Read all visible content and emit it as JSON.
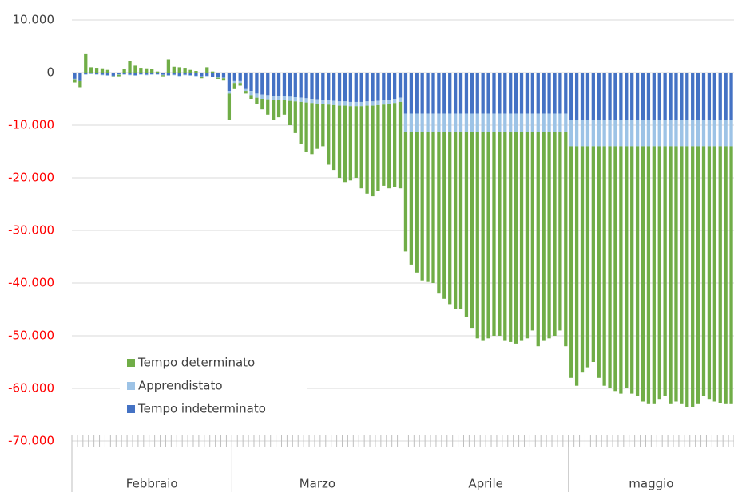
{
  "chart_data": {
    "type": "stacked_bar",
    "categories": [
      null,
      null,
      null,
      null,
      null,
      null,
      null,
      null,
      null,
      null,
      null,
      null,
      null,
      null,
      null,
      null,
      null,
      null,
      null,
      null,
      null,
      null,
      null,
      null,
      null,
      null,
      null,
      null,
      null,
      null,
      null,
      null,
      null,
      null,
      null,
      null,
      null,
      null,
      null,
      null,
      null,
      null,
      null,
      null,
      null,
      null,
      null,
      null,
      null,
      null,
      null,
      null,
      null,
      null,
      null,
      null,
      null,
      null,
      null,
      null,
      null,
      null,
      null,
      null,
      null,
      null,
      null,
      null,
      null,
      null,
      null,
      null,
      null,
      null,
      null,
      null,
      null,
      null,
      null,
      null,
      null,
      null,
      null,
      null,
      null,
      null,
      null,
      null,
      null,
      null,
      null,
      null,
      null,
      null,
      null,
      null,
      null,
      null,
      null,
      null,
      null,
      null,
      null,
      null,
      null,
      null,
      null,
      null,
      null,
      null,
      null,
      null,
      null,
      null,
      null,
      null,
      null,
      null,
      null,
      null
    ],
    "groups": [
      {
        "label": "Febbraio",
        "count": 29
      },
      {
        "label": "Marzo",
        "count": 31
      },
      {
        "label": "Aprile",
        "count": 30
      },
      {
        "label": "maggio",
        "count": 30
      }
    ],
    "series": [
      {
        "name": "Tempo indeterminato",
        "color": "#4472c4",
        "values": [
          -1200,
          -1500,
          -300,
          -200,
          -300,
          -400,
          -500,
          -600,
          -300,
          -300,
          -400,
          -500,
          -300,
          -400,
          -300,
          -300,
          -400,
          -500,
          -400,
          -600,
          -400,
          -500,
          -600,
          -700,
          -600,
          -800,
          -900,
          -1000,
          -3500,
          -1500,
          -1500,
          -3000,
          -3500,
          -4000,
          -4200,
          -4300,
          -4400,
          -4500,
          -4500,
          -4600,
          -4700,
          -4800,
          -4900,
          -5000,
          -5100,
          -5200,
          -5300,
          -5400,
          -5500,
          -5500,
          -5600,
          -5600,
          -5600,
          -5500,
          -5500,
          -5400,
          -5300,
          -5200,
          -5000,
          -4800,
          -7800,
          -7800,
          -7800,
          -7800,
          -7800,
          -7800,
          -7800,
          -7800,
          -7800,
          -7800,
          -7800,
          -7800,
          -7800,
          -7800,
          -7800,
          -7800,
          -7800,
          -7800,
          -7800,
          -7800,
          -7800,
          -7800,
          -7800,
          -7800,
          -7800,
          -7800,
          -7800,
          -7800,
          -7800,
          -7800,
          -9000,
          -9000,
          -9000,
          -9000,
          -9000,
          -9000,
          -9000,
          -9000,
          -9000,
          -9000,
          -9000,
          -9000,
          -9000,
          -9000,
          -9000,
          -9000,
          -9000,
          -9000,
          -9000,
          -9000,
          -9000,
          -9000,
          -9000,
          -9000,
          -9000,
          -9000,
          -9000,
          -9000,
          -9000,
          -9000
        ]
      },
      {
        "name": "Apprendistato",
        "color": "#9dc3e6",
        "values": [
          -100,
          -100,
          -100,
          -100,
          -100,
          -100,
          -100,
          -100,
          -100,
          -100,
          -100,
          -100,
          -100,
          -100,
          -100,
          -100,
          -100,
          -100,
          -100,
          -100,
          -100,
          -100,
          -100,
          -100,
          -100,
          -100,
          -100,
          -100,
          -500,
          -500,
          -500,
          -500,
          -800,
          -800,
          -800,
          -800,
          -800,
          -800,
          -800,
          -800,
          -800,
          -800,
          -800,
          -800,
          -800,
          -800,
          -800,
          -800,
          -800,
          -800,
          -800,
          -800,
          -800,
          -800,
          -800,
          -800,
          -800,
          -800,
          -800,
          -800,
          -3500,
          -3500,
          -3500,
          -3500,
          -3500,
          -3500,
          -3500,
          -3500,
          -3500,
          -3500,
          -3500,
          -3500,
          -3500,
          -3500,
          -3500,
          -3500,
          -3500,
          -3500,
          -3500,
          -3500,
          -3500,
          -3500,
          -3500,
          -3500,
          -3500,
          -3500,
          -3500,
          -3500,
          -3500,
          -3500,
          -5000,
          -5000,
          -5000,
          -5000,
          -5000,
          -5000,
          -5000,
          -5000,
          -5000,
          -5000,
          -5000,
          -5000,
          -5000,
          -5000,
          -5000,
          -5000,
          -5000,
          -5000,
          -5000,
          -5000,
          -5000,
          -5000,
          -5000,
          -5000,
          -5000,
          -5000,
          -5000,
          -5000,
          -5000,
          -5000
        ]
      },
      {
        "name": "Tempo determinato",
        "color": "#70ad47",
        "values": [
          -600,
          -1200,
          3500,
          1000,
          900,
          800,
          500,
          -200,
          -300,
          700,
          2200,
          1300,
          900,
          800,
          700,
          200,
          -200,
          2500,
          1100,
          1000,
          900,
          500,
          300,
          -300,
          1000,
          200,
          -200,
          -300,
          -5000,
          -1000,
          -500,
          -500,
          -700,
          -1200,
          -2000,
          -2900,
          -3800,
          -3200,
          -2700,
          -4600,
          -6000,
          -7900,
          -9300,
          -9700,
          -8600,
          -8000,
          -11400,
          -12300,
          -13700,
          -14500,
          -14100,
          -13600,
          -15600,
          -16700,
          -17200,
          -16300,
          -15400,
          -16000,
          -16000,
          -16400,
          -22700,
          -25200,
          -26700,
          -28200,
          -28500,
          -28700,
          -30700,
          -31700,
          -32700,
          -33700,
          -33700,
          -35200,
          -37200,
          -39200,
          -39700,
          -39200,
          -38700,
          -38700,
          -39700,
          -39900,
          -40200,
          -39700,
          -39200,
          -37700,
          -40700,
          -39700,
          -39200,
          -38700,
          -37700,
          -40700,
          -44000,
          -45500,
          -43000,
          -42000,
          -41000,
          -44000,
          -45500,
          -46000,
          -46500,
          -47000,
          -46000,
          -47000,
          -47500,
          -48500,
          -49000,
          -49000,
          -48000,
          -47500,
          -49000,
          -48500,
          -49000,
          -49500,
          -49500,
          -49000,
          -47500,
          -48000,
          -48500,
          -48800,
          -49000,
          -49000
        ]
      }
    ],
    "ylim": [
      -70000,
      10000
    ],
    "yticks": [
      {
        "value": -70000,
        "label": "-70.000"
      },
      {
        "value": -60000,
        "label": "-60.000"
      },
      {
        "value": -50000,
        "label": "-50.000"
      },
      {
        "value": -40000,
        "label": "-40.000"
      },
      {
        "value": -30000,
        "label": "-30.000"
      },
      {
        "value": -20000,
        "label": "-20.000"
      },
      {
        "value": -10000,
        "label": "-10.000"
      },
      0,
      {
        "value": 10000,
        "label": "10.000"
      }
    ],
    "grid": true,
    "legend": "bottom-left",
    "negative_label_color": "#ff0000"
  }
}
